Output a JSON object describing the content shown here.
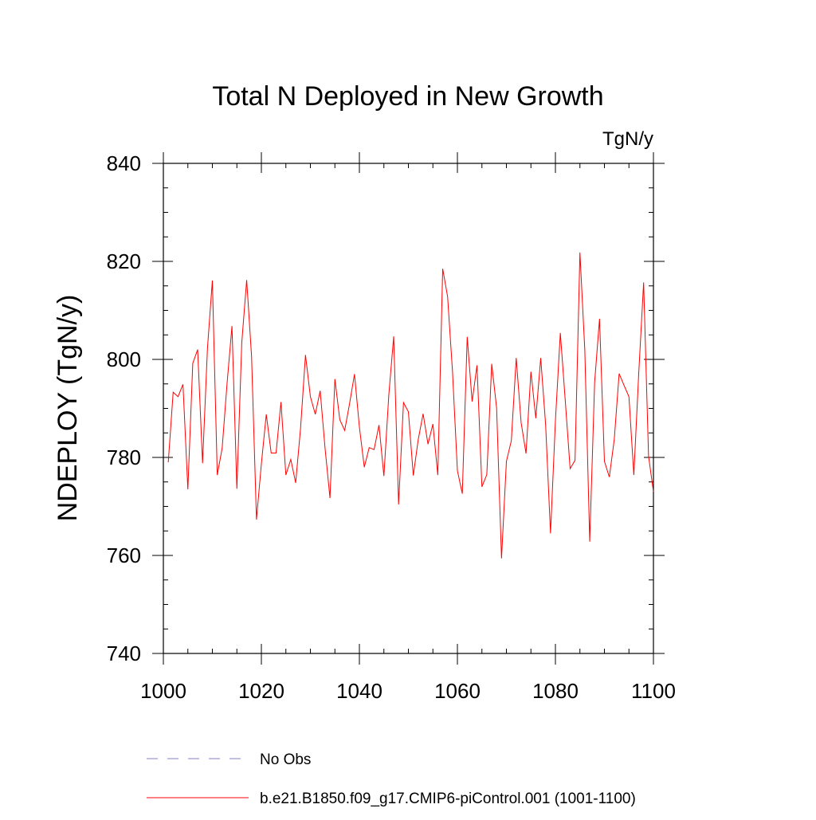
{
  "chart_data": {
    "type": "line",
    "title": "Total N Deployed in New Growth",
    "units_label": "TgN/y",
    "xlabel": "",
    "ylabel": "NDEPLOY  (TgN/y)",
    "xlim": [
      1000,
      1100
    ],
    "ylim": [
      740,
      840
    ],
    "x_ticks": [
      1000,
      1020,
      1040,
      1060,
      1080,
      1100
    ],
    "y_ticks": [
      740,
      760,
      780,
      800,
      820,
      840
    ],
    "x_tick_labels": [
      "1000",
      "1020",
      "1040",
      "1060",
      "1080",
      "1100"
    ],
    "y_tick_labels": [
      "740",
      "760",
      "780",
      "800",
      "820",
      "840"
    ],
    "x_minor_step": 5,
    "y_minor_step": 5,
    "grid": false,
    "legend_position": "bottom-left",
    "series": [
      {
        "name": "b.e21.B1850.f09_g17.CMIP6-piControl.001 (1001-1100)",
        "color": "#ff0000",
        "style": "solid",
        "x": [
          1001,
          1002,
          1003,
          1004,
          1005,
          1006,
          1007,
          1008,
          1009,
          1010,
          1011,
          1012,
          1013,
          1014,
          1015,
          1016,
          1017,
          1018,
          1019,
          1020,
          1021,
          1022,
          1023,
          1024,
          1025,
          1026,
          1027,
          1028,
          1029,
          1030,
          1031,
          1032,
          1033,
          1034,
          1035,
          1036,
          1037,
          1038,
          1039,
          1040,
          1041,
          1042,
          1043,
          1044,
          1045,
          1046,
          1047,
          1048,
          1049,
          1050,
          1051,
          1052,
          1053,
          1054,
          1055,
          1056,
          1057,
          1058,
          1059,
          1060,
          1061,
          1062,
          1063,
          1064,
          1065,
          1066,
          1067,
          1068,
          1069,
          1070,
          1071,
          1072,
          1073,
          1074,
          1075,
          1076,
          1077,
          1078,
          1079,
          1080,
          1081,
          1082,
          1083,
          1084,
          1085,
          1086,
          1087,
          1088,
          1089,
          1090,
          1091,
          1092,
          1093,
          1094,
          1095,
          1096,
          1097,
          1098,
          1099,
          1100
        ],
        "values": [
          779.0,
          793.3,
          792.4,
          794.9,
          773.5,
          799.2,
          802.0,
          778.8,
          802.3,
          816.1,
          776.4,
          781.9,
          795.1,
          806.8,
          773.6,
          803.4,
          816.2,
          800.6,
          767.3,
          778.7,
          788.8,
          780.9,
          780.9,
          791.3,
          776.4,
          779.6,
          774.8,
          786.0,
          800.9,
          792.4,
          788.8,
          793.6,
          781.8,
          771.7,
          796.0,
          787.7,
          785.5,
          791.0,
          797.0,
          786.2,
          778.0,
          782.0,
          781.6,
          786.6,
          776.2,
          792.7,
          804.7,
          770.4,
          791.2,
          789.3,
          776.3,
          783.6,
          788.9,
          782.7,
          786.8,
          776.4,
          818.5,
          812.8,
          797.5,
          777.3,
          772.6,
          804.6,
          791.4,
          798.8,
          774.0,
          776.5,
          799.1,
          790.1,
          759.4,
          779.2,
          783.4,
          800.3,
          787.1,
          780.8,
          797.5,
          788.0,
          800.3,
          786.7,
          764.5,
          787.5,
          805.4,
          791.7,
          777.7,
          779.4,
          821.8,
          801.8,
          762.8,
          795.3,
          808.3,
          779.2,
          776.0,
          783.6,
          797.1,
          794.7,
          792.4,
          776.4,
          797.2,
          815.7,
          780.3,
          773.0
        ]
      },
      {
        "name": "No Obs",
        "color": "#8080c8",
        "style": "dashed",
        "x": [],
        "values": []
      }
    ]
  }
}
